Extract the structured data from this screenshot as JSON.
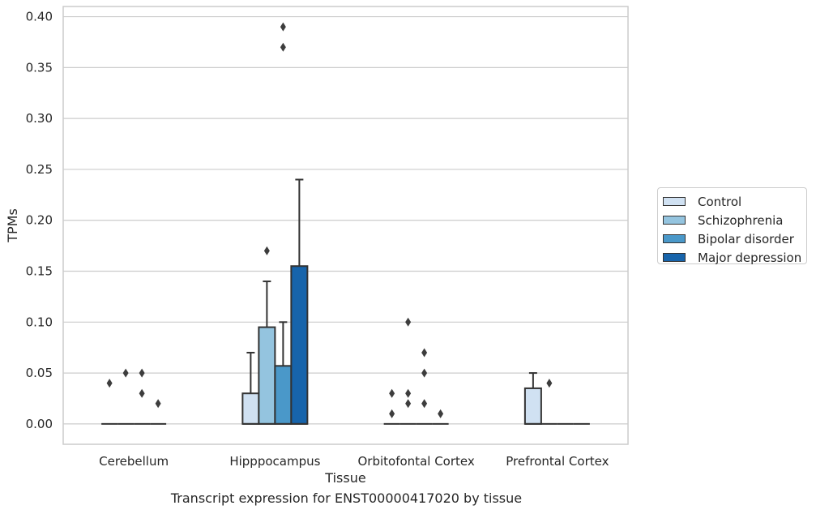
{
  "chart_data": {
    "type": "box",
    "xlabel": "Tissue",
    "ylabel": "TPMs",
    "ylim": [
      -0.02,
      0.41
    ],
    "yticks": [
      0.0,
      0.05,
      0.1,
      0.15,
      0.2,
      0.25,
      0.3,
      0.35,
      0.4
    ],
    "ytick_labels": [
      "0.00",
      "0.05",
      "0.10",
      "0.15",
      "0.20",
      "0.25",
      "0.30",
      "0.35",
      "0.40"
    ],
    "categories": [
      "Cerebellum",
      "Hipppocampus",
      "Orbitofontal Cortex",
      "Prefrontal Cortex"
    ],
    "grid": "horizontal",
    "legend_position": "right",
    "series": [
      {
        "name": "Control",
        "color": "#d0e1f2",
        "boxes": [
          {
            "q1": 0.0,
            "median": 0.0,
            "q3": 0.0,
            "whisker_low": 0.0,
            "whisker_high": 0.0,
            "outliers": [
              0.04
            ]
          },
          {
            "q1": 0.0,
            "median": 0.0,
            "q3": 0.03,
            "whisker_low": 0.0,
            "whisker_high": 0.07,
            "outliers": []
          },
          {
            "q1": 0.0,
            "median": 0.0,
            "q3": 0.0,
            "whisker_low": 0.0,
            "whisker_high": 0.0,
            "outliers": [
              0.01,
              0.03
            ]
          },
          {
            "q1": 0.0,
            "median": 0.0,
            "q3": 0.035,
            "whisker_low": 0.0,
            "whisker_high": 0.05,
            "outliers": []
          }
        ]
      },
      {
        "name": "Schizophrenia",
        "color": "#94c4df",
        "boxes": [
          {
            "q1": 0.0,
            "median": 0.0,
            "q3": 0.0,
            "whisker_low": 0.0,
            "whisker_high": 0.0,
            "outliers": [
              0.05
            ]
          },
          {
            "q1": 0.0,
            "median": 0.0,
            "q3": 0.095,
            "whisker_low": 0.0,
            "whisker_high": 0.14,
            "outliers": [
              0.17
            ]
          },
          {
            "q1": 0.0,
            "median": 0.0,
            "q3": 0.0,
            "whisker_low": 0.0,
            "whisker_high": 0.0,
            "outliers": [
              0.02,
              0.03,
              0.1
            ]
          },
          {
            "q1": 0.0,
            "median": 0.0,
            "q3": 0.0,
            "whisker_low": 0.0,
            "whisker_high": 0.0,
            "outliers": [
              0.04
            ]
          }
        ]
      },
      {
        "name": "Bipolar disorder",
        "color": "#4a98c9",
        "boxes": [
          {
            "q1": 0.0,
            "median": 0.0,
            "q3": 0.0,
            "whisker_low": 0.0,
            "whisker_high": 0.0,
            "outliers": [
              0.03,
              0.05
            ]
          },
          {
            "q1": 0.0,
            "median": 0.0,
            "q3": 0.057,
            "whisker_low": 0.0,
            "whisker_high": 0.1,
            "outliers": [
              0.37,
              0.39
            ]
          },
          {
            "q1": 0.0,
            "median": 0.0,
            "q3": 0.0,
            "whisker_low": 0.0,
            "whisker_high": 0.0,
            "outliers": [
              0.02,
              0.05,
              0.07
            ]
          },
          {
            "q1": 0.0,
            "median": 0.0,
            "q3": 0.0,
            "whisker_low": 0.0,
            "whisker_high": 0.0,
            "outliers": []
          }
        ]
      },
      {
        "name": "Major depression",
        "color": "#1764ab",
        "boxes": [
          {
            "q1": 0.0,
            "median": 0.0,
            "q3": 0.0,
            "whisker_low": 0.0,
            "whisker_high": 0.0,
            "outliers": [
              0.02
            ]
          },
          {
            "q1": 0.0,
            "median": 0.0,
            "q3": 0.155,
            "whisker_low": 0.0,
            "whisker_high": 0.24,
            "outliers": []
          },
          {
            "q1": 0.0,
            "median": 0.0,
            "q3": 0.0,
            "whisker_low": 0.0,
            "whisker_high": 0.0,
            "outliers": [
              0.01
            ]
          },
          {
            "q1": 0.0,
            "median": 0.0,
            "q3": 0.0,
            "whisker_low": 0.0,
            "whisker_high": 0.0,
            "outliers": []
          }
        ]
      }
    ]
  },
  "caption": "Transcript expression for ENST00000417020 by tissue",
  "legend": {
    "items": [
      {
        "label": "Control",
        "color": "#d0e1f2"
      },
      {
        "label": "Schizophrenia",
        "color": "#94c4df"
      },
      {
        "label": "Bipolar disorder",
        "color": "#4a98c9"
      },
      {
        "label": "Major depression",
        "color": "#1764ab"
      }
    ]
  }
}
